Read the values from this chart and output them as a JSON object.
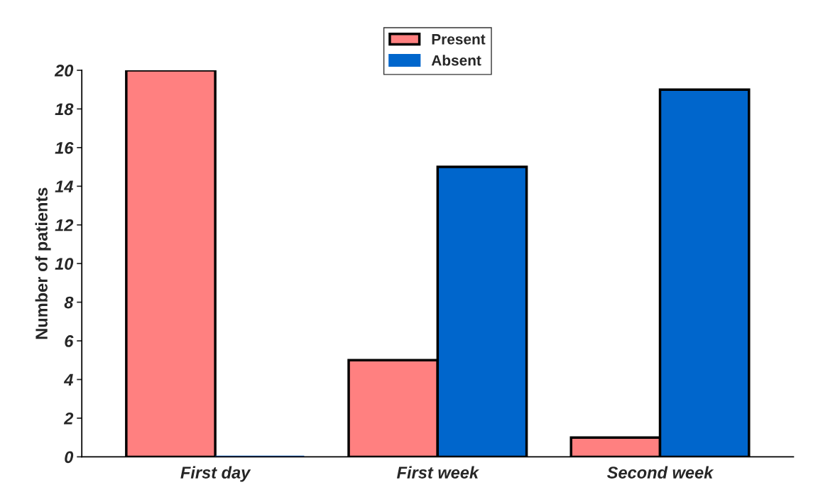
{
  "chart_data": {
    "type": "bar",
    "ylabel": "Number of patients",
    "categories": [
      "First day",
      "First week",
      "Second week"
    ],
    "series": [
      {
        "name": "Present",
        "color": "#ff8080",
        "values": [
          20,
          5,
          1
        ]
      },
      {
        "name": "Absent",
        "color": "#0066cc",
        "values": [
          0,
          15,
          19
        ]
      }
    ],
    "ylim": [
      0,
      20
    ],
    "yticks": [
      0,
      2,
      4,
      6,
      8,
      10,
      12,
      14,
      16,
      18,
      20
    ],
    "grid": false,
    "legend": "top"
  }
}
